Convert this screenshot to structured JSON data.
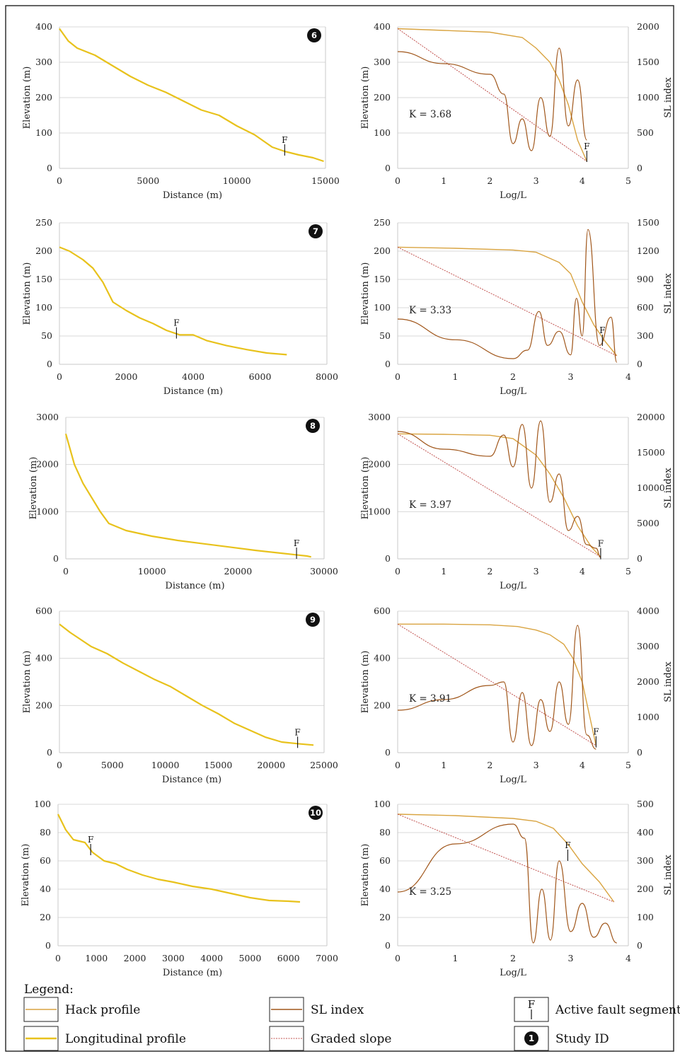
{
  "legend": {
    "title": "Legend:",
    "items": [
      {
        "key": "hack",
        "label": "Hack profile"
      },
      {
        "key": "longitudinal",
        "label": "Longitudinal profile"
      },
      {
        "key": "sl",
        "label": "SL index"
      },
      {
        "key": "graded",
        "label": "Graded slope"
      },
      {
        "key": "fault",
        "label": "Active fault segment",
        "symbol_text": "F"
      },
      {
        "key": "study",
        "label": "Study ID",
        "symbol_text": "1"
      }
    ]
  },
  "colors": {
    "longitudinal": "#e8c21c",
    "hack": "#d9a441",
    "sl": "#a0561a",
    "graded": "#c0504d",
    "grid": "#d8d8d8"
  },
  "chart_data": [
    {
      "id": "6",
      "type": "line",
      "xlabel": "Distance (m)",
      "ylabel": "Elevation (m)",
      "xlim": [
        0,
        15000
      ],
      "xticks": [
        0,
        5000,
        10000,
        15000
      ],
      "ylim": [
        0,
        400
      ],
      "yticks": [
        0,
        100,
        200,
        300,
        400
      ],
      "x": [
        0,
        500,
        1000,
        2000,
        3000,
        4000,
        5000,
        6000,
        7000,
        8000,
        9000,
        10000,
        11000,
        12000,
        12700,
        13500,
        14300,
        14900
      ],
      "y": [
        395,
        360,
        340,
        320,
        290,
        260,
        235,
        215,
        190,
        165,
        150,
        120,
        95,
        60,
        48,
        38,
        30,
        20
      ],
      "fault": {
        "x": 12700,
        "y": 48,
        "label": "F"
      }
    },
    {
      "id": "6",
      "type": "line",
      "xlabel": "Log/L",
      "ylabel": "Elevation (m)",
      "y2label": "SL index",
      "xlim": [
        0,
        5
      ],
      "xticks": [
        0,
        1,
        2,
        3,
        4,
        5
      ],
      "ylim": [
        0,
        400
      ],
      "yticks": [
        0,
        100,
        200,
        300,
        400
      ],
      "y2lim": [
        0,
        2000
      ],
      "y2ticks": [
        0,
        500,
        1000,
        1500,
        2000
      ],
      "k_label": "K = 3.68",
      "hack": {
        "x": [
          0,
          1,
          2,
          2.7,
          3.0,
          3.3,
          3.5,
          3.7,
          3.9,
          4.1
        ],
        "y": [
          395,
          390,
          385,
          370,
          340,
          300,
          250,
          180,
          80,
          20
        ]
      },
      "graded": {
        "x": [
          0,
          4.1
        ],
        "y": [
          395,
          20
        ]
      },
      "sl": {
        "x": [
          0,
          1,
          2,
          2.3,
          2.5,
          2.7,
          2.9,
          3.1,
          3.3,
          3.5,
          3.7,
          3.9,
          4.1
        ],
        "y": [
          1650,
          1480,
          1330,
          1050,
          350,
          700,
          250,
          1000,
          450,
          1700,
          600,
          1250,
          400
        ]
      },
      "fault": {
        "x": 4.1,
        "y": 30,
        "label": "F"
      }
    },
    {
      "id": "7",
      "type": "line",
      "xlabel": "Distance (m)",
      "ylabel": "Elevation (m)",
      "xlim": [
        0,
        8000
      ],
      "xticks": [
        0,
        2000,
        4000,
        6000,
        8000
      ],
      "ylim": [
        0,
        250
      ],
      "yticks": [
        0,
        50,
        100,
        150,
        200,
        250
      ],
      "x": [
        0,
        300,
        700,
        1000,
        1300,
        1600,
        2000,
        2400,
        2800,
        3200,
        3600,
        4000,
        4400,
        5000,
        5600,
        6200,
        6800
      ],
      "y": [
        207,
        200,
        185,
        170,
        145,
        110,
        95,
        82,
        72,
        60,
        52,
        52,
        42,
        33,
        26,
        20,
        17
      ],
      "fault": {
        "x": 3500,
        "y": 53,
        "label": "F"
      }
    },
    {
      "id": "7",
      "type": "line",
      "xlabel": "Log/L",
      "ylabel": "Elevation (m)",
      "y2label": "SL index",
      "xlim": [
        0,
        4
      ],
      "xticks": [
        0,
        1,
        2,
        3,
        4
      ],
      "ylim": [
        0,
        250
      ],
      "yticks": [
        0,
        50,
        100,
        150,
        200,
        250
      ],
      "y2lim": [
        0,
        1500
      ],
      "y2ticks": [
        0,
        300,
        600,
        900,
        1200,
        1500
      ],
      "k_label": "K = 3.33",
      "hack": {
        "x": [
          0,
          1,
          2,
          2.4,
          2.8,
          3.0,
          3.2,
          3.4,
          3.6,
          3.8
        ],
        "y": [
          207,
          205,
          202,
          198,
          180,
          160,
          110,
          70,
          40,
          15
        ]
      },
      "graded": {
        "x": [
          0,
          3.8
        ],
        "y": [
          207,
          15
        ]
      },
      "sl": {
        "x": [
          0,
          1,
          2,
          2.25,
          2.45,
          2.6,
          2.8,
          3.0,
          3.1,
          3.2,
          3.3,
          3.5,
          3.7,
          3.8
        ],
        "y": [
          480,
          260,
          60,
          150,
          560,
          200,
          350,
          100,
          700,
          300,
          1430,
          200,
          500,
          20
        ]
      },
      "fault": {
        "x": 3.55,
        "y": 40,
        "label": "F"
      }
    },
    {
      "id": "8",
      "type": "line",
      "xlabel": "Distance (m)",
      "ylabel": "Elevation (m)",
      "xlim": [
        0,
        30000
      ],
      "xticks": [
        0,
        10000,
        20000,
        30000
      ],
      "ylim": [
        0,
        3000
      ],
      "yticks": [
        0,
        1000,
        2000,
        3000
      ],
      "x": [
        0,
        1000,
        2000,
        3000,
        4000,
        5000,
        7000,
        10000,
        13000,
        16000,
        19000,
        22000,
        25000,
        27000,
        28000,
        28500
      ],
      "y": [
        2650,
        2000,
        1600,
        1300,
        1000,
        750,
        600,
        480,
        390,
        320,
        250,
        180,
        120,
        80,
        60,
        40
      ],
      "fault": {
        "x": 26800,
        "y": 90,
        "label": "F"
      }
    },
    {
      "id": "8",
      "type": "line",
      "xlabel": "Log/L",
      "ylabel": "Elevation (m)",
      "y2label": "SL index",
      "xlim": [
        0,
        5
      ],
      "xticks": [
        0,
        1,
        2,
        3,
        4,
        5
      ],
      "ylim": [
        0,
        3000
      ],
      "yticks": [
        0,
        1000,
        2000,
        3000
      ],
      "y2lim": [
        0,
        20000
      ],
      "y2ticks": [
        0,
        5000,
        10000,
        15000,
        20000
      ],
      "k_label": "K = 3.97",
      "hack": {
        "x": [
          0,
          1,
          2,
          2.5,
          3.0,
          3.3,
          3.6,
          3.9,
          4.2,
          4.4
        ],
        "y": [
          2650,
          2640,
          2620,
          2550,
          2200,
          1800,
          1300,
          700,
          250,
          40
        ]
      },
      "graded": {
        "x": [
          0,
          4.4
        ],
        "y": [
          2650,
          40
        ]
      },
      "sl": {
        "x": [
          0,
          1,
          2,
          2.3,
          2.5,
          2.7,
          2.9,
          3.1,
          3.3,
          3.5,
          3.7,
          3.9,
          4.1,
          4.3,
          4.4
        ],
        "y": [
          18000,
          15500,
          14500,
          17500,
          13000,
          19000,
          10000,
          19500,
          8000,
          12000,
          4000,
          6000,
          2000,
          1500,
          200
        ]
      },
      "fault": {
        "x": 4.4,
        "y": 80,
        "label": "F"
      }
    },
    {
      "id": "9",
      "type": "line",
      "xlabel": "Distance (m)",
      "ylabel": "Elevation (m)",
      "xlim": [
        0,
        25000
      ],
      "xticks": [
        0,
        5000,
        10000,
        15000,
        20000,
        25000
      ],
      "ylim": [
        0,
        600
      ],
      "yticks": [
        0,
        200,
        400,
        600
      ],
      "x": [
        0,
        1000,
        2000,
        3000,
        4500,
        6000,
        7500,
        9000,
        10500,
        12000,
        13500,
        15000,
        16500,
        18000,
        19500,
        21000,
        22500,
        24000
      ],
      "y": [
        545,
        510,
        480,
        450,
        420,
        380,
        345,
        310,
        280,
        240,
        200,
        165,
        125,
        95,
        65,
        45,
        38,
        32
      ],
      "fault": {
        "x": 22500,
        "y": 38,
        "label": "F"
      }
    },
    {
      "id": "9",
      "type": "line",
      "xlabel": "Log/L",
      "ylabel": "Elevation (m)",
      "y2label": "SL index",
      "xlim": [
        0,
        5
      ],
      "xticks": [
        0,
        1,
        2,
        3,
        4,
        5
      ],
      "ylim": [
        0,
        600
      ],
      "yticks": [
        0,
        200,
        400,
        600
      ],
      "y2lim": [
        0,
        4000
      ],
      "y2ticks": [
        0,
        1000,
        2000,
        3000,
        4000
      ],
      "k_label": "K = 3.91",
      "hack": {
        "x": [
          0,
          1,
          2,
          2.6,
          3.0,
          3.3,
          3.6,
          3.8,
          4.0,
          4.2,
          4.3
        ],
        "y": [
          545,
          545,
          542,
          535,
          520,
          500,
          460,
          400,
          300,
          120,
          30
        ]
      },
      "graded": {
        "x": [
          0,
          4.3
        ],
        "y": [
          545,
          30
        ]
      },
      "sl": {
        "x": [
          0,
          1,
          2,
          2.3,
          2.5,
          2.7,
          2.9,
          3.1,
          3.3,
          3.5,
          3.7,
          3.9,
          4.1,
          4.3
        ],
        "y": [
          1200,
          1500,
          1900,
          2000,
          300,
          1700,
          200,
          1500,
          600,
          2000,
          800,
          3600,
          500,
          100
        ]
      },
      "fault": {
        "x": 4.3,
        "y": 40,
        "label": "F"
      }
    },
    {
      "id": "10",
      "type": "line",
      "xlabel": "Distance (m)",
      "ylabel": "Elevation (m)",
      "xlim": [
        0,
        7000
      ],
      "xticks": [
        0,
        1000,
        2000,
        3000,
        4000,
        5000,
        6000,
        7000
      ],
      "ylim": [
        0,
        100
      ],
      "yticks": [
        0,
        20,
        40,
        60,
        80,
        100
      ],
      "x": [
        0,
        200,
        400,
        700,
        900,
        1200,
        1500,
        1800,
        2200,
        2600,
        3000,
        3500,
        4000,
        4500,
        5000,
        5500,
        6000,
        6300
      ],
      "y": [
        93,
        82,
        75,
        73,
        66,
        60,
        58,
        54,
        50,
        47,
        45,
        42,
        40,
        37,
        34,
        32,
        31.5,
        31
      ],
      "fault": {
        "x": 850,
        "y": 67,
        "label": "F"
      }
    },
    {
      "id": "10",
      "type": "line",
      "xlabel": "Log/L",
      "ylabel": "Elevation (m)",
      "y2label": "SL index",
      "xlim": [
        0,
        4
      ],
      "xticks": [
        0,
        1,
        2,
        3,
        4
      ],
      "ylim": [
        0,
        100
      ],
      "yticks": [
        0,
        20,
        40,
        60,
        80,
        100
      ],
      "y2lim": [
        0,
        500
      ],
      "y2ticks": [
        0,
        100,
        200,
        300,
        400,
        500
      ],
      "k_label": "K = 3.25",
      "hack": {
        "x": [
          0,
          1,
          2,
          2.4,
          2.7,
          2.95,
          3.2,
          3.5,
          3.75
        ],
        "y": [
          93,
          92,
          90,
          88,
          83,
          72,
          58,
          45,
          31
        ]
      },
      "graded": {
        "x": [
          0,
          3.75
        ],
        "y": [
          93,
          31
        ]
      },
      "sl": {
        "x": [
          0,
          1,
          2,
          2.2,
          2.35,
          2.5,
          2.65,
          2.8,
          3.0,
          3.2,
          3.4,
          3.6,
          3.8
        ],
        "y": [
          190,
          360,
          430,
          380,
          10,
          200,
          20,
          300,
          50,
          150,
          30,
          80,
          10
        ]
      },
      "fault": {
        "x": 2.95,
        "y": 63,
        "label": "F"
      }
    }
  ]
}
